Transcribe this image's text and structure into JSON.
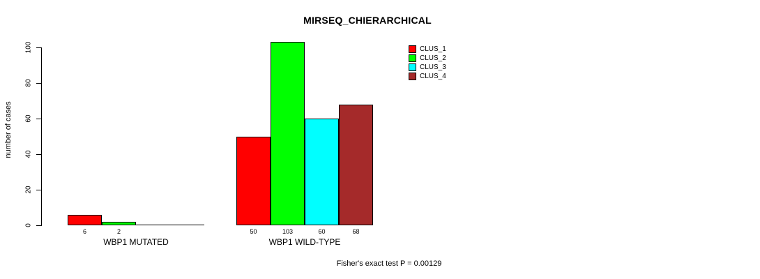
{
  "chart_data": {
    "type": "bar",
    "title": "MIRSEQ_CHIERARCHICAL",
    "ylabel": "number of cases",
    "xlabel": "",
    "ylim": [
      0,
      108
    ],
    "yticks": [
      0,
      20,
      40,
      60,
      80,
      100
    ],
    "grid": false,
    "legend_position": "top-right",
    "categories": [
      "WBP1 MUTATED",
      "WBP1 WILD-TYPE"
    ],
    "series": [
      {
        "name": "CLUS_1",
        "color": "#FF0000",
        "values": [
          6,
          50
        ]
      },
      {
        "name": "CLUS_2",
        "color": "#00FF00",
        "values": [
          2,
          103
        ]
      },
      {
        "name": "CLUS_3",
        "color": "#00FFFF",
        "values": [
          0,
          60
        ]
      },
      {
        "name": "CLUS_4",
        "color": "#A52A2A",
        "values": [
          0,
          68
        ]
      }
    ],
    "bar_value_labels_shown": true,
    "footnote": "Fisher's exact test P = 0.00129",
    "colors": {
      "axis": "#000000",
      "text": "#000000",
      "background": "#FFFFFF"
    }
  }
}
